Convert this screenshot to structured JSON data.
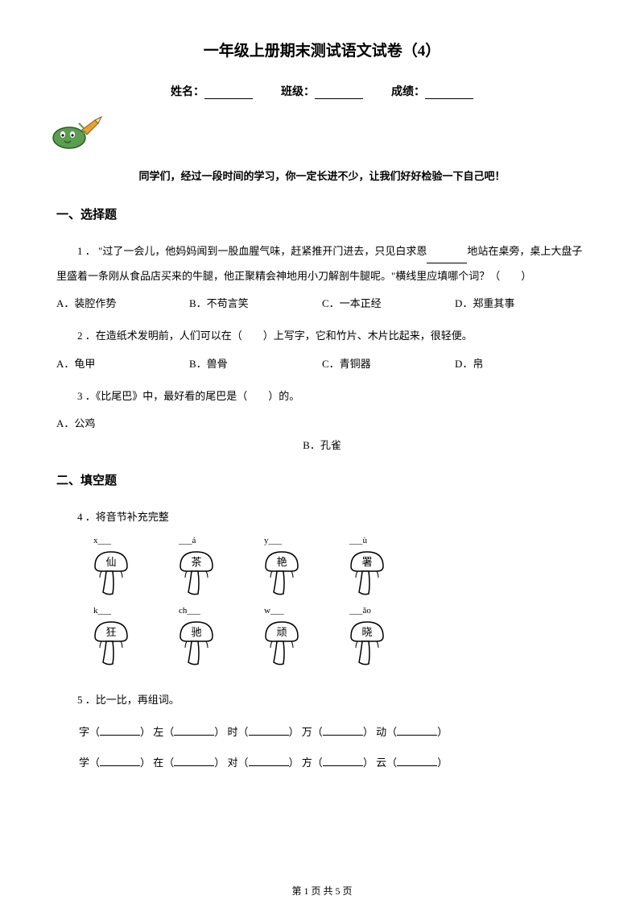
{
  "title": "一年级上册期末测试语文试卷（4）",
  "info": {
    "name_label": "姓名：",
    "class_label": "班级：",
    "score_label": "成绩："
  },
  "intro": "同学们，经过一段时间的学习，你一定长进不少，让我们好好检验一下自己吧！",
  "section1": {
    "header": "一、选择题",
    "q1": {
      "num": "1 ．",
      "text_a": "\"过了一会儿，他妈妈闻到一股血腥气味，赶紧推开门进去，只见白求恩",
      "text_b": "地站在桌旁，桌上大盘子里盛着一条刚从食品店买来的牛腿，他正聚精会神地用小刀解剖牛腿呢。\"横线里应填哪个词？（　　）",
      "opts": {
        "a": "A．装腔作势",
        "b": "B．不苟言笑",
        "c": "C．一本正经",
        "d": "D．郑重其事"
      }
    },
    "q2": {
      "num": "2 ．",
      "text": "在造纸术发明前，人们可以在（　　）上写字，它和竹片、木片比起来，很轻便。",
      "opts": {
        "a": "A．龟甲",
        "b": "B．兽骨",
        "c": "C．青铜器",
        "d": "D．帛"
      }
    },
    "q3": {
      "num": "3 ．",
      "text": "《比尾巴》中，最好看的尾巴是（　　）的。",
      "opt_a": "A．公鸡",
      "opt_b": "B．孔雀"
    }
  },
  "section2": {
    "header": "二、填空题",
    "q4": {
      "num": "4 ．",
      "text": "将音节补充完整",
      "row1": [
        {
          "label": "x___",
          "char": "仙"
        },
        {
          "label": "___á",
          "char": "茶"
        },
        {
          "label": "y___",
          "char": "艳"
        },
        {
          "label": "___ù",
          "char": "署"
        }
      ],
      "row2": [
        {
          "label": "k___",
          "char": "狂"
        },
        {
          "label": "ch___",
          "char": "驰"
        },
        {
          "label": "w___",
          "char": "顽"
        },
        {
          "label": "___ǎo",
          "char": "晓"
        }
      ]
    },
    "q5": {
      "num": "5 ．",
      "text": "比一比，再组词。",
      "line1": [
        "字（",
        "）  左（",
        "）  时（",
        "）  万（",
        "）  动（",
        "）"
      ],
      "line2": [
        "学（",
        "）  在（",
        "）  对（",
        "）  方（",
        "）  云（",
        "）"
      ]
    }
  },
  "footer": "第 1 页 共 5 页"
}
